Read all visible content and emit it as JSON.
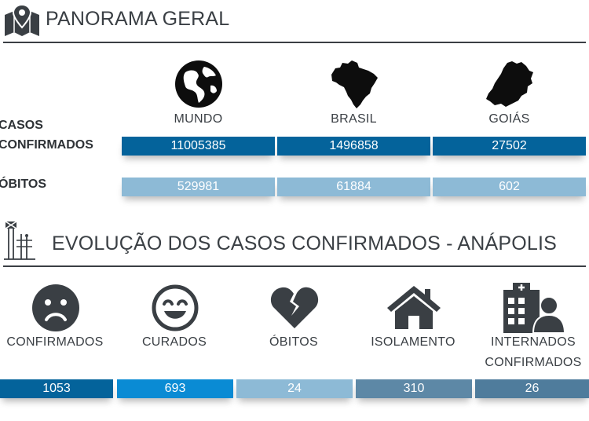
{
  "panorama": {
    "title": "PANORAMA GERAL",
    "regions": [
      "MUNDO",
      "BRASIL",
      "GOIÁS"
    ],
    "confirmed_label": [
      "CASOS",
      "CONFIRMADOS"
    ],
    "deaths_label": "ÓBITOS",
    "confirmed_values": [
      "11005385",
      "1496858",
      "27502"
    ],
    "deaths_values": [
      "529981",
      "61884",
      "602"
    ],
    "colors": {
      "confirmed": "#04639b",
      "deaths": "#8dbad6"
    },
    "icons": [
      "globe-icon",
      "brazil-map-icon",
      "goias-map-icon"
    ]
  },
  "evolucao": {
    "title": "EVOLUÇÃO DOS CASOS CONFIRMADOS - ANÁPOLIS",
    "categories": [
      {
        "label": "CONFIRMADOS",
        "value": "1053",
        "icon": "sad-face-icon",
        "color": "#04639b"
      },
      {
        "label": "CURADOS",
        "value": "693",
        "icon": "smiley-face-icon",
        "color": "#0a8bd4"
      },
      {
        "label": "ÓBITOS",
        "value": "24",
        "icon": "broken-heart-icon",
        "color": "#8dbad6"
      },
      {
        "label": "ISOLAMENTO",
        "value": "310",
        "icon": "house-icon",
        "color": "#5d88a6"
      },
      {
        "label": "INTERNADOS CONFIRMADOS",
        "value": "26",
        "icon": "hospital-patient-icon",
        "color": "#4f7c9c"
      }
    ]
  }
}
